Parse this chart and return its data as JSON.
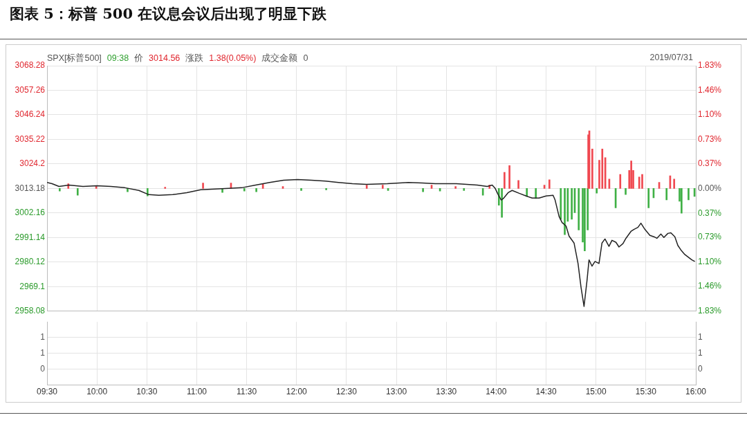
{
  "chart_data": [
    {
      "type": "line",
      "title": "图表 5：标普 500 在议息会议后出现了明显下跌",
      "annotations": [
        "SPX[标普500]",
        "09:38",
        "价",
        "3014.56",
        "涨跌",
        "1.38(0.05%)",
        "成交金额",
        "0",
        "2019/07/31"
      ],
      "series": [
        {
          "color": "#222222",
          "x": [
            9.5,
            9.55,
            9.62,
            9.72,
            9.86,
            10.0,
            10.14,
            10.28,
            10.42,
            10.52,
            10.62,
            10.76,
            10.9,
            11.04,
            11.18,
            11.32,
            11.45,
            11.59,
            11.73,
            11.87,
            12.01,
            12.15,
            12.29,
            12.42,
            12.56,
            12.7,
            12.91,
            13.12,
            13.26,
            13.39,
            13.6,
            13.81,
            13.91,
            13.96,
            13.99,
            14.02,
            14.05,
            14.07,
            14.12,
            14.16,
            14.23,
            14.3,
            14.36,
            14.43,
            14.5,
            14.57,
            14.59,
            14.63,
            14.66,
            14.7,
            14.73,
            14.78,
            14.82,
            14.85,
            14.88,
            14.91,
            14.93,
            14.96,
            14.99,
            15.03,
            15.06,
            15.09,
            15.13,
            15.16,
            15.2,
            15.23,
            15.27,
            15.3,
            15.35,
            15.38,
            15.42,
            15.45,
            15.49,
            15.54,
            15.58,
            15.61,
            15.65,
            15.68,
            15.72,
            15.75,
            15.79,
            15.82,
            15.85,
            15.89,
            15.96,
            15.99
          ],
          "values": [
            3015.9,
            3015.3,
            3014.1,
            3014.7,
            3014.1,
            3014.4,
            3014.1,
            3013.5,
            3012.3,
            3010.4,
            3010.1,
            3010.4,
            3011.3,
            3012.6,
            3012.9,
            3013.2,
            3013.5,
            3014.7,
            3015.9,
            3016.9,
            3017.2,
            3016.9,
            3016.5,
            3015.9,
            3015.3,
            3015.0,
            3015.3,
            3015.9,
            3015.6,
            3015.3,
            3015.3,
            3014.7,
            3014.1,
            3014.7,
            3013.2,
            3010.4,
            3008.0,
            3008.6,
            3011.3,
            3012.3,
            3011.0,
            3009.8,
            3008.9,
            3008.9,
            3009.8,
            3010.1,
            3008.0,
            3000.6,
            2997.9,
            2996.3,
            2991.8,
            2988.7,
            2979.5,
            2968.8,
            2960.2,
            2971.9,
            2981.1,
            2978.3,
            2980.4,
            2979.5,
            2988.7,
            2990.5,
            2987.2,
            2989.9,
            2989.0,
            2986.9,
            2988.4,
            2990.8,
            2993.9,
            2994.8,
            2995.7,
            2997.6,
            2994.8,
            2992.1,
            2991.5,
            2990.8,
            2992.7,
            2991.2,
            2993.0,
            2993.3,
            2991.5,
            2987.6,
            2985.6,
            2983.5,
            2981.1,
            2980.4
          ]
        },
        {
          "type": "bar",
          "axis": "y2",
          "color": "#f04850",
          "x": [
            9.72,
            10.0,
            10.69,
            11.07,
            11.35,
            11.67,
            11.87,
            12.71,
            12.87,
            13.36,
            13.6,
            13.94,
            14.09,
            14.14,
            14.23,
            14.49,
            14.54,
            14.93,
            14.94,
            14.97,
            15.04,
            15.07,
            15.1,
            15.14,
            15.25,
            15.34,
            15.36,
            15.38,
            15.44,
            15.47,
            15.64,
            15.75,
            15.79
          ],
          "values": [
            0.07,
            0.03,
            0.02,
            0.08,
            0.08,
            0.07,
            0.03,
            0.05,
            0.05,
            0.05,
            0.03,
            0.05,
            0.24,
            0.34,
            0.12,
            0.05,
            0.13,
            0.8,
            0.86,
            0.59,
            0.42,
            0.59,
            0.46,
            0.14,
            0.21,
            0.27,
            0.41,
            0.27,
            0.17,
            0.21,
            0.09,
            0.19,
            0.14
          ]
        },
        {
          "type": "bar",
          "axis": "y2",
          "color": "#3fb045",
          "x": [
            9.62,
            9.8,
            10.3,
            10.5,
            11.25,
            11.47,
            11.59,
            12.04,
            12.29,
            12.91,
            13.26,
            13.43,
            13.67,
            13.86,
            14.02,
            14.05,
            14.3,
            14.39,
            14.64,
            14.68,
            14.71,
            14.75,
            14.78,
            14.82,
            14.86,
            14.88,
            14.91,
            15.0,
            15.19,
            15.29,
            15.52,
            15.57,
            15.7,
            15.83,
            15.85,
            15.92,
            15.98
          ],
          "values": [
            -0.04,
            -0.1,
            -0.05,
            -0.11,
            -0.06,
            -0.04,
            -0.05,
            -0.03,
            -0.02,
            -0.03,
            -0.05,
            -0.04,
            -0.03,
            -0.1,
            -0.25,
            -0.43,
            -0.12,
            -0.15,
            -0.46,
            -0.69,
            -0.49,
            -0.46,
            -0.36,
            -0.62,
            -0.8,
            -0.93,
            -0.62,
            -0.07,
            -0.29,
            -0.09,
            -0.29,
            -0.14,
            -0.17,
            -0.19,
            -0.37,
            -0.17,
            -0.12
          ]
        }
      ],
      "xlim": [
        9.5,
        16
      ],
      "xticks": [
        9.5,
        10,
        10.5,
        11,
        11.5,
        12,
        12.5,
        13,
        13.5,
        14,
        14.5,
        15,
        15.5,
        16
      ],
      "ylim": [
        2958.08,
        3068.28
      ],
      "yticks": [
        2958.08,
        2969.1,
        2980.12,
        2991.14,
        3002.16,
        3013.18,
        3024.2,
        3035.22,
        3046.24,
        3057.26,
        3068.28
      ],
      "y2lim": [
        -1.83,
        1.83
      ],
      "y2ticks": [
        {
          "value": -1.83,
          "label": "1.83%"
        },
        {
          "value": -1.46,
          "label": "1.46%"
        },
        {
          "value": -1.1,
          "label": "1.10%"
        },
        {
          "value": -0.73,
          "label": "0.73%"
        },
        {
          "value": -0.37,
          "label": "0.37%"
        },
        {
          "value": 0,
          "label": "0.00%"
        },
        {
          "value": 0.37,
          "label": "0.37%"
        },
        {
          "value": 0.73,
          "label": "0.73%"
        },
        {
          "value": 1.1,
          "label": "1.10%"
        },
        {
          "value": 1.46,
          "label": "1.46%"
        },
        {
          "value": 1.83,
          "label": "1.83%"
        }
      ],
      "tick_labels": "y",
      "grid": true,
      "legend": false,
      "marker": "none",
      "line_style": "solid"
    },
    {
      "type": "bar",
      "xlim": [
        9.5,
        16
      ],
      "xticks": [
        {
          "value": 9.5,
          "label": "09:30"
        },
        {
          "value": 10,
          "label": "10:00"
        },
        {
          "value": 10.5,
          "label": "10:30"
        },
        {
          "value": 11,
          "label": "11:00"
        },
        {
          "value": 11.5,
          "label": "11:30"
        },
        {
          "value": 12,
          "label": "12:00"
        },
        {
          "value": 12.5,
          "label": "12:30"
        },
        {
          "value": 13,
          "label": "13:00"
        },
        {
          "value": 13.5,
          "label": "13:30"
        },
        {
          "value": 14,
          "label": "14:00"
        },
        {
          "value": 14.5,
          "label": "14:30"
        },
        {
          "value": 15,
          "label": "15:00"
        },
        {
          "value": 15.5,
          "label": "15:30"
        },
        {
          "value": 16,
          "label": "16:00"
        }
      ],
      "ylim": [
        -0.5,
        1.5
      ],
      "yticks": [
        0,
        {
          "value": 0.5,
          "label": "1"
        },
        1
      ],
      "y2lim": [
        -0.5,
        1.5
      ],
      "y2ticks": [
        0,
        {
          "value": 0.5,
          "label": "1"
        },
        1
      ],
      "grid": true,
      "legend": false
    }
  ]
}
